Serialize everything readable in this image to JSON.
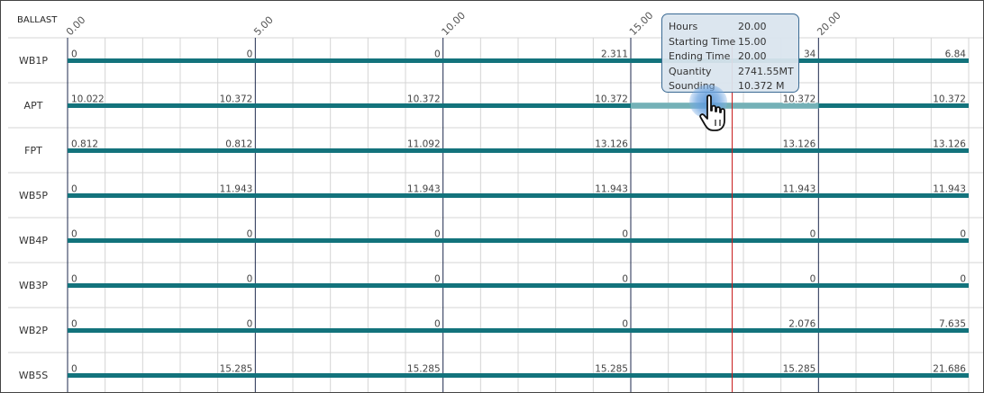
{
  "panel": {
    "title": "BALLAST"
  },
  "axis": {
    "ticks": [
      0,
      5,
      10,
      15,
      20
    ],
    "tick_labels": [
      "0.00",
      "5.00",
      "10.00",
      "15.00",
      "20.00"
    ],
    "min": 0,
    "max": 24,
    "minor_step": 1
  },
  "colors": {
    "bar": "#13737c",
    "grid": "#d4d4d4",
    "major_line": "#1e2a4e",
    "current_time": "#c81e1e",
    "highlight": "#7fb8be"
  },
  "current_time": 17.7,
  "rows": [
    {
      "name": "WB1P",
      "points": [
        {
          "t": 0,
          "label": "0"
        },
        {
          "t": 5,
          "label": "0"
        },
        {
          "t": 10,
          "label": "0"
        },
        {
          "t": 15,
          "label": "2.311"
        },
        {
          "t": 20,
          "label": "34"
        },
        {
          "t": 24,
          "label": "6.84"
        }
      ]
    },
    {
      "name": "APT",
      "highlight": [
        15,
        20
      ],
      "points": [
        {
          "t": 0,
          "label": "10.022"
        },
        {
          "t": 5,
          "label": "10.372"
        },
        {
          "t": 10,
          "label": "10.372"
        },
        {
          "t": 15,
          "label": "10.372"
        },
        {
          "t": 20,
          "label": "10.372"
        },
        {
          "t": 24,
          "label": "10.372"
        }
      ]
    },
    {
      "name": "FPT",
      "points": [
        {
          "t": 0,
          "label": "0.812"
        },
        {
          "t": 5,
          "label": "0.812"
        },
        {
          "t": 10,
          "label": "11.092"
        },
        {
          "t": 15,
          "label": "13.126"
        },
        {
          "t": 20,
          "label": "13.126"
        },
        {
          "t": 24,
          "label": "13.126"
        }
      ]
    },
    {
      "name": "WB5P",
      "points": [
        {
          "t": 0,
          "label": "0"
        },
        {
          "t": 5,
          "label": "11.943"
        },
        {
          "t": 10,
          "label": "11.943"
        },
        {
          "t": 15,
          "label": "11.943"
        },
        {
          "t": 20,
          "label": "11.943"
        },
        {
          "t": 24,
          "label": "11.943"
        }
      ]
    },
    {
      "name": "WB4P",
      "points": [
        {
          "t": 0,
          "label": "0"
        },
        {
          "t": 5,
          "label": "0"
        },
        {
          "t": 10,
          "label": "0"
        },
        {
          "t": 15,
          "label": "0"
        },
        {
          "t": 20,
          "label": "0"
        },
        {
          "t": 24,
          "label": "0"
        }
      ]
    },
    {
      "name": "WB3P",
      "points": [
        {
          "t": 0,
          "label": "0"
        },
        {
          "t": 5,
          "label": "0"
        },
        {
          "t": 10,
          "label": "0"
        },
        {
          "t": 15,
          "label": "0"
        },
        {
          "t": 20,
          "label": "0"
        },
        {
          "t": 24,
          "label": "0"
        }
      ]
    },
    {
      "name": "WB2P",
      "points": [
        {
          "t": 0,
          "label": "0"
        },
        {
          "t": 5,
          "label": "0"
        },
        {
          "t": 10,
          "label": "0"
        },
        {
          "t": 15,
          "label": "0"
        },
        {
          "t": 20,
          "label": "2.076"
        },
        {
          "t": 24,
          "label": "7.635"
        }
      ]
    },
    {
      "name": "WB5S",
      "points": [
        {
          "t": 0,
          "label": "0"
        },
        {
          "t": 5,
          "label": "15.285"
        },
        {
          "t": 10,
          "label": "15.285"
        },
        {
          "t": 15,
          "label": "15.285"
        },
        {
          "t": 20,
          "label": "15.285"
        },
        {
          "t": 24,
          "label": "21.686"
        }
      ]
    }
  ],
  "tooltip": {
    "rows": [
      {
        "key": "Hours",
        "value": "20.00"
      },
      {
        "key": "Starting Time",
        "value": "15.00"
      },
      {
        "key": "Ending Time",
        "value": "20.00"
      },
      {
        "key": "Quantity",
        "value": "2741.55MT"
      },
      {
        "key": "Sounding",
        "value": "10.372 M"
      }
    ]
  }
}
